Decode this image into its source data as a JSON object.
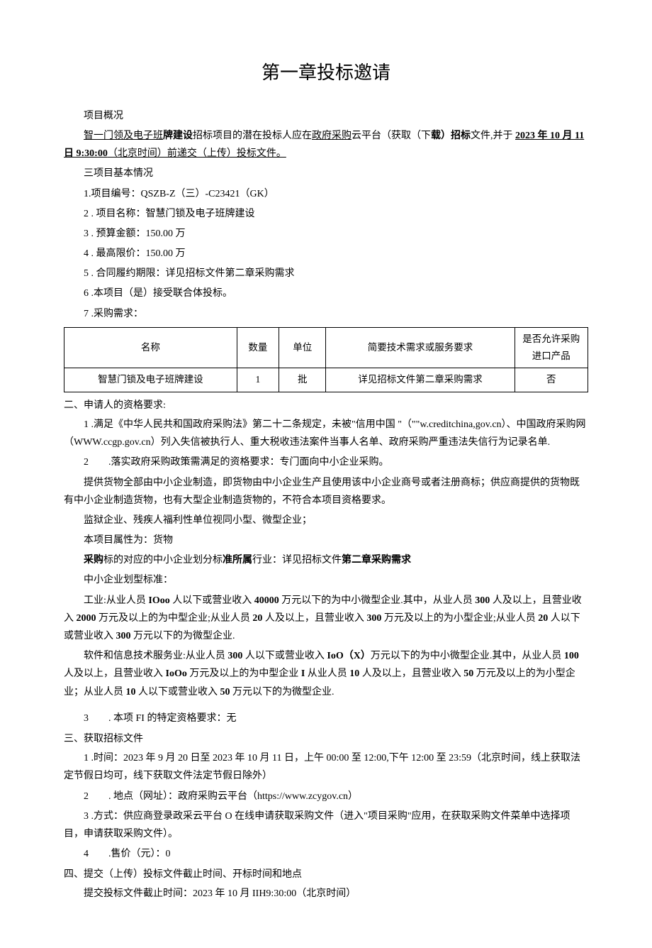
{
  "title": "第一章投标邀请",
  "s0": {
    "head": "项目概况",
    "intro_a": "智一门领及电子班",
    "intro_b": "牌建设",
    "intro_c": "招标项目的潜在投标人应在",
    "intro_d": "政府采购",
    "intro_e": "云平台（获取（下",
    "intro_f": "载）招标",
    "intro_g": "文件,并于 ",
    "intro_h": "2023 年 10 月 11 日 9:30:00",
    "intro_i": "（北京时间）前递交（上传）投标文件。"
  },
  "s1": {
    "head": "三项目基本情况",
    "i1": "1.项目编号：QSZB-Z（三）-C23421（GK）",
    "i2": "2 . 项目名称：智慧门锁及电子班牌建设",
    "i3": "3 . 预算金额：150.00 万",
    "i4": "4 . 最高限价：150.00 万",
    "i5": "5 . 合同履约期限：详见招标文件第二章采购需求",
    "i6": "6 .本项目（是）接受联合体投标。",
    "i7": "7 .采购需求："
  },
  "table": {
    "h1": "名称",
    "h2": "数量",
    "h3": "单位",
    "h4": "简要技术需求或服务要求",
    "h5": "是否允许采购进口产品",
    "r1c1": "智慧门锁及电子班牌建设",
    "r1c2": "1",
    "r1c3": "批",
    "r1c4": "详见招标文件第二章采购需求",
    "r1c5": "否"
  },
  "s2": {
    "head": "二、申请人的资格要求:",
    "p1": "1 .满足《中华人民共和国政府采购法》第二十二条规定，未被\"信用中国 \"（\"\"w.creditchina,gov.cn）、中国政府采购网（WWW.ccgp.gov.cn）列入失信被执行人、重大税收违法案件当事人名单、政府采购严重违法失信行为记录名单.",
    "p2": "2　　.落实政府采购政策需满足的资格要求：专门面向中小企业采购。",
    "p3": "提供货物全部由中小企业制造，即货物由中小企业生产且使用该中小企业商号或者注册商标；供应商提供的货物既有中小企业制造货物，也有大型企业制造货物的，不符合本项目资格要求。",
    "p4": "监狱企业、残疾人福利性单位视同小型、微型企业；",
    "p5": "本项目属性为：货物",
    "p6a": "采购",
    "p6b": "标的对应的中小企业划分标",
    "p6c": "准所属",
    "p6d": "行业：详见招标文件",
    "p6e": "第二章采购需求",
    "p7": "中小企业划型标准：",
    "p8a": "工业:从业人员 ",
    "p8b": "IOoo",
    "p8c": " 人以下或营业收入 ",
    "p8d": "40000",
    "p8e": " 万元以下的为中小微型企业.其中，从业人员 ",
    "p8f": "300",
    "p8g": " 人及以上，且营业收入 ",
    "p8h": "2000",
    "p8i": " 万元及以上的为中型企业;从业人员 ",
    "p8j": "20",
    "p8k": " 人及以上，且营业收入 ",
    "p8l": "300",
    "p8m": " 万元及以上的为小型企业;从业人员 ",
    "p8n": "20",
    "p8o": " 人以下或营业收入 ",
    "p8p": "300",
    "p8q": " 万元以下的为微型企业.",
    "p9a": "软件和信息技术服务业:从业人员 ",
    "p9b": "300",
    "p9c": " 人以下或营业收入 ",
    "p9d": "IoO（X）",
    "p9e": "万元以下的为中小微型企业.其中，从业人员 ",
    "p9f": "100",
    "p9g": " 人及以上，且营业收入 ",
    "p9h": "IoOo",
    "p9i": " 万元及以上的为中型企业 ",
    "p9j": "I",
    "p9k": " 从业人员 ",
    "p9l": "10",
    "p9m": " 人及以上，且营业收入 ",
    "p9n": "50",
    "p9o": " 万元及以上的为小型企业；从业人员 ",
    "p9p": "10",
    "p9q": " 人以下或营业收入 ",
    "p9r": "50",
    "p9s": " 万元以下的为微型企业.",
    "p10": "3　　. 本项 FI 的特定资格要求：无"
  },
  "s3": {
    "head": "三、获取招标文件",
    "p1": "1 .时间：2023 年 9 月 20 日至 2023 年 10 月 11 日，上午 00:00 至 12:00,下午 12:00 至 23:59（北京时间，线上获取法定节假日均可，线下获取文件法定节假日除外）",
    "p2": "2　　. 地点（网址）：政府采购云平台（https://www.zcygov.cn）",
    "p3": "3 .方式：供应商登录政采云平台 O 在线申请获取采购文件（进入\"项目采购\"应用，在获取采购文件菜单中选择项目，申请获取采购文件）。",
    "p4": "4　　.售价（元）：0"
  },
  "s4": {
    "head": "四、提交（上传）投标文件截止时间、开标时间和地点",
    "p1": "提交投标文件截止时间：2023 年 10 月 IIH9:30:00（北京时间）"
  }
}
